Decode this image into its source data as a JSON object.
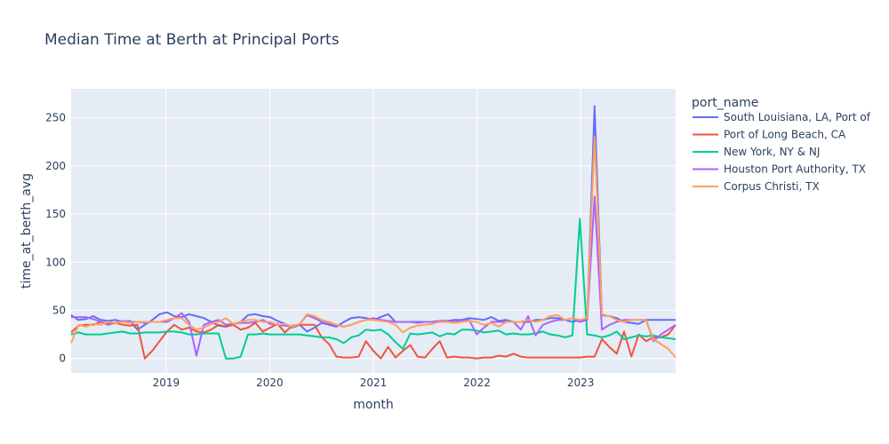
{
  "chart_data": {
    "type": "line",
    "title": "Median Time at Berth at Principal Ports",
    "xlabel": "month",
    "ylabel": "time_at_berth_avg",
    "xlim": [
      "2018-02",
      "2023-12"
    ],
    "ylim": [
      -15,
      280
    ],
    "x_ticks": [
      "2019",
      "2020",
      "2021",
      "2022",
      "2023"
    ],
    "y_ticks": [
      0,
      50,
      100,
      150,
      200,
      250
    ],
    "legend_title": "port_name",
    "legend_position": "right",
    "grid": true,
    "series": [
      {
        "name": "South Louisiana, LA, Port of",
        "color": "#636efa",
        "values": [
          45,
          40,
          41,
          44,
          40,
          39,
          40,
          38,
          39,
          30,
          35,
          40,
          46,
          48,
          44,
          43,
          46,
          44,
          42,
          38,
          34,
          33,
          36,
          38,
          45,
          46,
          44,
          43,
          39,
          36,
          32,
          35,
          28,
          32,
          37,
          35,
          33,
          38,
          42,
          43,
          42,
          40,
          43,
          46,
          38,
          38,
          38,
          38,
          38,
          38,
          39,
          39,
          40,
          40,
          42,
          41,
          40,
          43,
          39,
          40,
          38,
          38,
          38,
          40,
          40,
          42,
          42,
          40,
          38,
          40,
          40,
          262,
          45,
          44,
          42,
          38,
          37,
          36,
          40,
          40,
          40,
          40,
          40
        ]
      },
      {
        "name": "Port of Long Beach, CA",
        "color": "#ef553b",
        "values": [
          27,
          34,
          35,
          35,
          38,
          36,
          37,
          35,
          34,
          35,
          0,
          8,
          18,
          28,
          35,
          30,
          32,
          28,
          27,
          30,
          35,
          33,
          35,
          30,
          32,
          37,
          28,
          32,
          36,
          27,
          34,
          35,
          35,
          35,
          22,
          15,
          2,
          1,
          1,
          2,
          18,
          8,
          0,
          12,
          1,
          8,
          14,
          2,
          1,
          10,
          18,
          1,
          2,
          1,
          1,
          0,
          1,
          1,
          3,
          2,
          5,
          2,
          1,
          1,
          1,
          1,
          1,
          1,
          1,
          1,
          2,
          2,
          20,
          12,
          5,
          28,
          2,
          25,
          18,
          22,
          22,
          25,
          35
        ]
      },
      {
        "name": "New York, NY & NJ",
        "color": "#00cc96",
        "values": [
          25,
          27,
          25,
          25,
          25,
          26,
          27,
          28,
          26,
          26,
          27,
          27,
          27,
          28,
          28,
          27,
          25,
          25,
          26,
          26,
          26,
          0,
          0,
          2,
          25,
          25,
          26,
          25,
          25,
          25,
          25,
          25,
          24,
          23,
          22,
          22,
          20,
          16,
          22,
          24,
          30,
          29,
          30,
          25,
          17,
          10,
          26,
          25,
          26,
          27,
          23,
          26,
          25,
          30,
          30,
          29,
          27,
          28,
          29,
          25,
          26,
          25,
          25,
          26,
          28,
          25,
          24,
          22,
          24,
          145,
          25,
          24,
          22,
          24,
          28,
          20,
          22,
          24,
          23,
          24,
          22,
          21,
          20
        ]
      },
      {
        "name": "Houston Port Authority, TX",
        "color": "#ab63fa",
        "values": [
          43,
          43,
          43,
          41,
          38,
          35,
          37,
          39,
          38,
          38,
          37,
          38,
          38,
          38,
          42,
          47,
          38,
          3,
          35,
          38,
          40,
          35,
          36,
          37,
          37,
          38,
          40,
          36,
          35,
          34,
          33,
          36,
          45,
          42,
          38,
          36,
          35,
          33,
          35,
          38,
          40,
          42,
          40,
          39,
          38,
          38,
          38,
          37,
          38,
          38,
          39,
          38,
          38,
          39,
          40,
          25,
          32,
          38,
          38,
          38,
          38,
          30,
          44,
          24,
          35,
          38,
          40,
          40,
          42,
          38,
          40,
          168,
          30,
          35,
          38,
          40,
          40,
          40,
          40,
          18,
          25,
          30,
          35
        ]
      },
      {
        "name": "Corpus Christi, TX",
        "color": "#ffa15a",
        "values": [
          16,
          35,
          33,
          36,
          35,
          38,
          37,
          38,
          37,
          38,
          38,
          38,
          38,
          40,
          42,
          42,
          35,
          30,
          32,
          36,
          38,
          42,
          36,
          38,
          40,
          40,
          38,
          38,
          35,
          36,
          33,
          36,
          46,
          44,
          40,
          38,
          35,
          33,
          35,
          38,
          40,
          40,
          39,
          38,
          35,
          27,
          32,
          34,
          35,
          36,
          38,
          38,
          37,
          38,
          39,
          38,
          35,
          37,
          33,
          38,
          38,
          38,
          40,
          38,
          40,
          44,
          45,
          40,
          42,
          40,
          42,
          230,
          46,
          44,
          40,
          38,
          40,
          40,
          40,
          20,
          15,
          10,
          1
        ]
      }
    ]
  }
}
